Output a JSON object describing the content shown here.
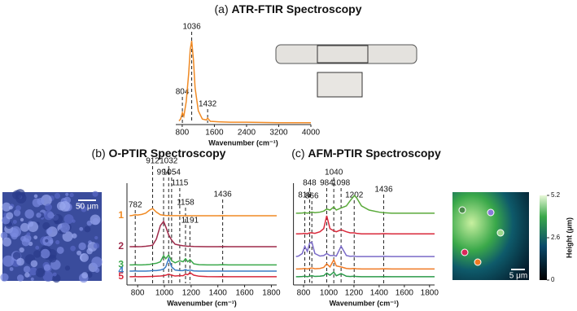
{
  "chart_data": [
    {
      "type": "line",
      "panel_label": "(a)",
      "title": "ATR-FTIR Spectroscopy",
      "xlabel": "Wavenumber (cm⁻¹)",
      "xlim": [
        640,
        4000
      ],
      "xticks": [
        800,
        1600,
        2400,
        3200,
        4000
      ],
      "ylim": [
        0,
        10
      ],
      "x": [
        720,
        760,
        804,
        840,
        900,
        960,
        1000,
        1036,
        1080,
        1120,
        1200,
        1300,
        1400,
        1432,
        1500,
        1700,
        2000,
        2400,
        3200,
        4000
      ],
      "series": [
        {
          "color": "#f08a24",
          "values": [
            0.4,
            0.6,
            1.3,
            0.9,
            2.5,
            5.5,
            8.2,
            9.1,
            7.0,
            4.0,
            1.5,
            0.6,
            0.5,
            0.7,
            0.35,
            0.3,
            0.25,
            0.25,
            0.2,
            0.2
          ]
        }
      ],
      "peaks": [
        804,
        1036,
        1432
      ]
    },
    {
      "type": "line",
      "panel_label": "(b)",
      "title": "O-PTIR Spectroscopy",
      "xlabel": "Wavenumber (cm⁻¹)",
      "xlim": [
        720,
        1840
      ],
      "xticks": [
        800,
        1000,
        1200,
        1400,
        1600,
        1800
      ],
      "ylim": [
        0,
        10
      ],
      "x": [
        740,
        760,
        782,
        800,
        830,
        860,
        890,
        912,
        940,
        970,
        994,
        1010,
        1032,
        1054,
        1080,
        1115,
        1140,
        1158,
        1175,
        1191,
        1220,
        1260,
        1320,
        1400,
        1436,
        1480,
        1560,
        1640,
        1720,
        1800,
        1840
      ],
      "series": [
        {
          "name": "1",
          "color": "#f08a24",
          "values": [
            6.85,
            6.88,
            6.95,
            6.92,
            6.98,
            7.1,
            7.4,
            7.55,
            7.2,
            6.95,
            6.9,
            6.88,
            6.87,
            6.86,
            6.86,
            6.86,
            6.85,
            6.86,
            6.85,
            6.85,
            6.85,
            6.85,
            6.85,
            6.85,
            6.86,
            6.85,
            6.85,
            6.85,
            6.85,
            6.85,
            6.85
          ]
        },
        {
          "name": "2",
          "color": "#9e2a4a",
          "values": [
            3.86,
            3.86,
            3.87,
            3.86,
            3.87,
            3.9,
            3.95,
            4.0,
            4.6,
            5.9,
            6.3,
            5.8,
            5.0,
            4.5,
            4.1,
            4.0,
            3.95,
            3.93,
            3.9,
            3.9,
            3.88,
            3.87,
            3.86,
            3.86,
            3.87,
            3.86,
            3.86,
            3.86,
            3.86,
            3.86,
            3.86
          ]
        },
        {
          "name": "3",
          "color": "#3aa84a",
          "values": [
            2.1,
            2.1,
            2.12,
            2.1,
            2.1,
            2.12,
            2.15,
            2.2,
            2.25,
            2.4,
            3.0,
            2.7,
            3.05,
            2.5,
            2.3,
            2.5,
            2.4,
            2.7,
            2.4,
            2.6,
            2.2,
            2.12,
            2.1,
            2.1,
            2.12,
            2.1,
            2.1,
            2.1,
            2.1,
            2.1,
            2.1
          ]
        },
        {
          "name": "4",
          "color": "#3a7cc4",
          "values": [
            1.5,
            1.5,
            1.52,
            1.5,
            1.5,
            1.5,
            1.52,
            1.55,
            1.55,
            1.6,
            1.7,
            1.9,
            2.7,
            1.9,
            1.6,
            1.55,
            1.55,
            1.65,
            1.55,
            1.6,
            1.52,
            1.5,
            1.5,
            1.5,
            1.5,
            1.5,
            1.5,
            1.5,
            1.5,
            1.5,
            1.5
          ]
        },
        {
          "name": "5",
          "color": "#d8283a",
          "values": [
            0.95,
            0.95,
            0.97,
            0.95,
            0.95,
            0.96,
            0.97,
            0.98,
            1.0,
            1.02,
            1.05,
            1.1,
            1.2,
            1.1,
            1.02,
            1.05,
            1.05,
            1.2,
            1.15,
            1.35,
            1.1,
            1.0,
            0.96,
            0.95,
            0.96,
            0.95,
            0.95,
            0.95,
            0.95,
            0.95,
            0.95
          ]
        }
      ],
      "peaks": [
        782,
        912,
        994,
        1032,
        1054,
        1115,
        1158,
        1191,
        1436
      ]
    },
    {
      "type": "line",
      "panel_label": "(c)",
      "title": "AFM-PTIR Spectroscopy",
      "xlabel": "Wavenumber (cm⁻¹)",
      "xlim": [
        720,
        1840
      ],
      "xticks": [
        800,
        1000,
        1200,
        1400,
        1600,
        1800
      ],
      "ylim": [
        0,
        10
      ],
      "x": [
        740,
        760,
        790,
        810,
        830,
        848,
        866,
        890,
        930,
        960,
        984,
        1010,
        1040,
        1060,
        1098,
        1140,
        1170,
        1202,
        1220,
        1260,
        1320,
        1400,
        1436,
        1500,
        1600,
        1700,
        1800,
        1840
      ],
      "series": [
        {
          "color": "#5aaa3a",
          "values": [
            7.1,
            7.1,
            7.12,
            7.15,
            7.1,
            7.15,
            7.2,
            7.15,
            7.2,
            7.3,
            7.5,
            7.4,
            7.7,
            7.4,
            7.6,
            7.8,
            8.3,
            8.8,
            8.6,
            7.8,
            7.4,
            7.2,
            7.15,
            7.1,
            7.1,
            7.1,
            7.1,
            7.1
          ]
        },
        {
          "color": "#d8283a",
          "values": [
            5.1,
            5.1,
            5.12,
            5.15,
            5.1,
            5.2,
            5.2,
            5.15,
            5.3,
            5.6,
            6.85,
            5.6,
            5.4,
            5.3,
            5.5,
            5.3,
            5.2,
            5.2,
            5.15,
            5.1,
            5.1,
            5.1,
            5.12,
            5.1,
            5.1,
            5.1,
            5.1,
            5.1
          ]
        },
        {
          "color": "#7a6ac8",
          "values": [
            2.9,
            2.95,
            3.2,
            3.9,
            3.4,
            4.2,
            4.3,
            3.2,
            2.95,
            3.0,
            3.2,
            3.0,
            3.0,
            2.95,
            3.9,
            3.0,
            2.92,
            2.95,
            2.9,
            2.9,
            2.9,
            2.9,
            2.92,
            2.9,
            2.9,
            2.9,
            2.9,
            2.9
          ]
        },
        {
          "color": "#f07a24",
          "values": [
            1.7,
            1.7,
            1.72,
            1.75,
            1.7,
            1.75,
            1.8,
            1.72,
            1.75,
            1.85,
            2.2,
            1.9,
            2.6,
            2.0,
            1.9,
            1.75,
            1.72,
            1.75,
            1.72,
            1.7,
            1.7,
            1.7,
            1.72,
            1.7,
            1.7,
            1.7,
            1.7,
            1.7
          ]
        },
        {
          "color": "#2a9a4a",
          "values": [
            0.95,
            0.95,
            0.97,
            1.0,
            0.96,
            1.0,
            1.05,
            0.98,
            1.0,
            1.05,
            1.3,
            1.1,
            1.4,
            1.05,
            1.25,
            1.0,
            0.97,
            1.0,
            0.97,
            0.95,
            0.95,
            0.95,
            0.96,
            0.95,
            0.95,
            0.95,
            0.95,
            0.95
          ]
        }
      ],
      "peaks": [
        810,
        848,
        866,
        984,
        1040,
        1098,
        1202,
        1436
      ]
    }
  ],
  "images": {
    "microscope_scale": "50 μm",
    "afm_scale": "5 μm",
    "colorbar": {
      "label": "Height (μm)",
      "lim": [
        0,
        5.2
      ],
      "ticks": [
        5.2,
        2.6,
        0
      ]
    }
  }
}
